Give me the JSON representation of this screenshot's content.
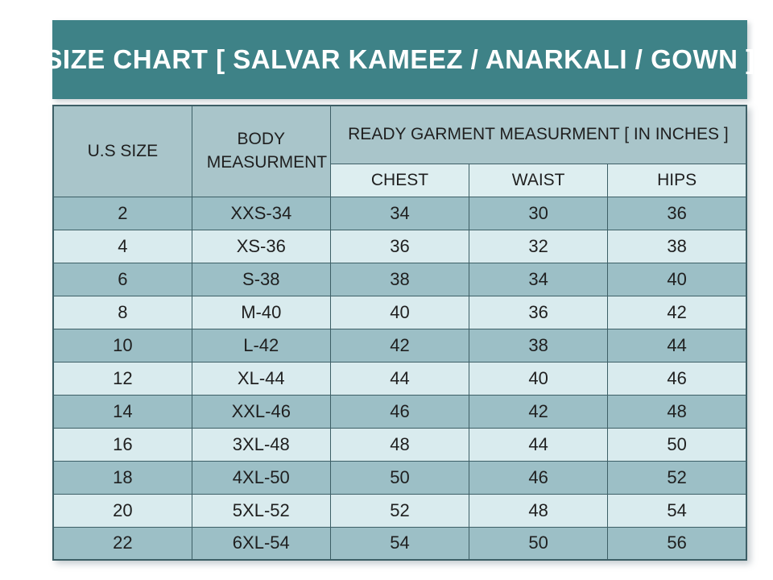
{
  "title": "SIZE CHART [ SALVAR KAMEEZ / ANARKALI / GOWN ]",
  "table": {
    "header": {
      "us_size": "U.S SIZE",
      "body_measurement": "BODY MEASURMENT",
      "ready_garment": "READY GARMENT MEASURMENT [ IN INCHES ]",
      "sub_columns": [
        "CHEST",
        "WAIST",
        "HIPS"
      ]
    },
    "rows": [
      {
        "us_size": "2",
        "body": "XXS-34",
        "chest": "34",
        "waist": "30",
        "hips": "36"
      },
      {
        "us_size": "4",
        "body": "XS-36",
        "chest": "36",
        "waist": "32",
        "hips": "38"
      },
      {
        "us_size": "6",
        "body": "S-38",
        "chest": "38",
        "waist": "34",
        "hips": "40"
      },
      {
        "us_size": "8",
        "body": "M-40",
        "chest": "40",
        "waist": "36",
        "hips": "42"
      },
      {
        "us_size": "10",
        "body": "L-42",
        "chest": "42",
        "waist": "38",
        "hips": "44"
      },
      {
        "us_size": "12",
        "body": "XL-44",
        "chest": "44",
        "waist": "40",
        "hips": "46"
      },
      {
        "us_size": "14",
        "body": "XXL-46",
        "chest": "46",
        "waist": "42",
        "hips": "48"
      },
      {
        "us_size": "16",
        "body": "3XL-48",
        "chest": "48",
        "waist": "44",
        "hips": "50"
      },
      {
        "us_size": "18",
        "body": "4XL-50",
        "chest": "50",
        "waist": "46",
        "hips": "52"
      },
      {
        "us_size": "20",
        "body": "5XL-52",
        "chest": "52",
        "waist": "48",
        "hips": "54"
      },
      {
        "us_size": "22",
        "body": "6XL-54",
        "chest": "54",
        "waist": "50",
        "hips": "56"
      }
    ]
  },
  "colors": {
    "title_bg": "#3E8287",
    "header_bg": "#A9C5CA",
    "subheader_bg": "#DDEEF0",
    "row_dark": "#9CBFC6",
    "row_light": "#D9EBEE",
    "border": "#3D5F66",
    "title_text": "#FFFFFF",
    "text": "#1F1F1F"
  },
  "chart_data": {
    "type": "table",
    "title": "SIZE CHART [ SALVAR KAMEEZ / ANARKALI / GOWN ]",
    "columns": [
      "U.S SIZE",
      "BODY MEASURMENT",
      "CHEST",
      "WAIST",
      "HIPS"
    ],
    "column_group": {
      "label": "READY GARMENT MEASURMENT [ IN INCHES ]",
      "spans": [
        "CHEST",
        "WAIST",
        "HIPS"
      ]
    },
    "rows": [
      [
        "2",
        "XXS-34",
        34,
        30,
        36
      ],
      [
        "4",
        "XS-36",
        36,
        32,
        38
      ],
      [
        "6",
        "S-38",
        38,
        34,
        40
      ],
      [
        "8",
        "M-40",
        40,
        36,
        42
      ],
      [
        "10",
        "L-42",
        42,
        38,
        44
      ],
      [
        "12",
        "XL-44",
        44,
        40,
        46
      ],
      [
        "14",
        "XXL-46",
        46,
        42,
        48
      ],
      [
        "16",
        "3XL-48",
        48,
        44,
        50
      ],
      [
        "18",
        "4XL-50",
        50,
        46,
        52
      ],
      [
        "20",
        "5XL-52",
        52,
        48,
        54
      ],
      [
        "22",
        "6XL-54",
        54,
        50,
        56
      ]
    ]
  }
}
